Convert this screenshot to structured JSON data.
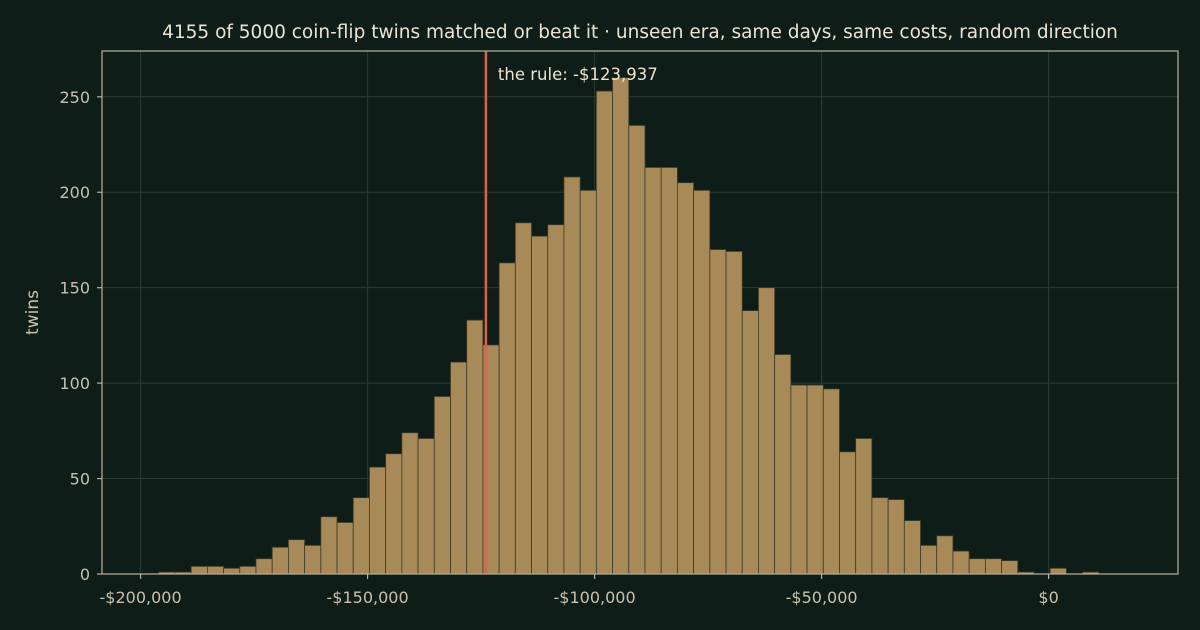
{
  "chart_data": {
    "type": "bar",
    "title": "4155 of 5000 coin-flip twins matched or beat it  ·  unseen era, same days, same costs, random direction",
    "xlabel": "",
    "ylabel": "twins",
    "xlim": [
      -208500,
      28500
    ],
    "ylim": [
      0,
      274
    ],
    "x_ticks": [
      {
        "value": -200000,
        "label": "-$200,000"
      },
      {
        "value": -150000,
        "label": "-$150,000"
      },
      {
        "value": -100000,
        "label": "-$100,000"
      },
      {
        "value": -50000,
        "label": "-$50,000"
      },
      {
        "value": 0,
        "label": "$0"
      }
    ],
    "y_ticks": [
      {
        "value": 0,
        "label": "0"
      },
      {
        "value": 50,
        "label": "50"
      },
      {
        "value": 100,
        "label": "100"
      },
      {
        "value": 150,
        "label": "150"
      },
      {
        "value": 200,
        "label": "200"
      },
      {
        "value": 250,
        "label": "250"
      }
    ],
    "grid": true,
    "bin_start": -196000,
    "bin_width": 3570,
    "counts": [
      1,
      1,
      4,
      4,
      3,
      4,
      8,
      14,
      18,
      15,
      30,
      27,
      40,
      56,
      63,
      74,
      71,
      93,
      111,
      133,
      120,
      163,
      184,
      177,
      183,
      208,
      201,
      253,
      260,
      235,
      213,
      213,
      205,
      201,
      170,
      169,
      138,
      150,
      115,
      99,
      99,
      97,
      64,
      71,
      40,
      39,
      28,
      15,
      20,
      12,
      8,
      8,
      7,
      1,
      0,
      3,
      0,
      1,
      0
    ],
    "reference_line": {
      "value": -123937,
      "label": "the rule: -$123,937",
      "color": "#d9614f"
    },
    "bar_color": "#a88a58",
    "background_color": "#0f1d18"
  }
}
